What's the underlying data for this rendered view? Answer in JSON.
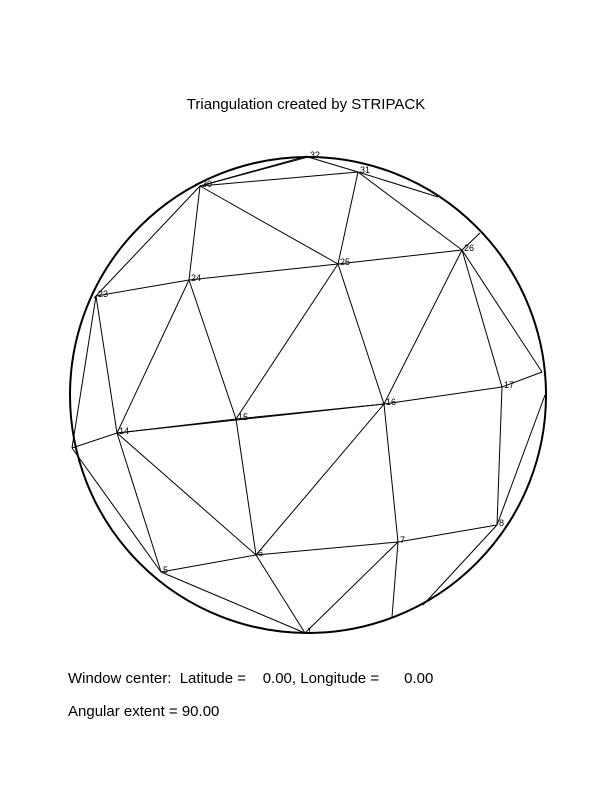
{
  "title": "Triangulation created by STRIPACK",
  "window_center": {
    "prefix": "Window center:",
    "lat_label": "Latitude =",
    "lat_value": "0.00",
    "lon_label": "Longitude =",
    "lon_value": "0.00"
  },
  "angular_extent": {
    "label": "Angular extent =",
    "value": "90.00"
  },
  "nodes": [
    {
      "id": "1"
    },
    {
      "id": "5"
    },
    {
      "id": "6"
    },
    {
      "id": "7"
    },
    {
      "id": "8"
    },
    {
      "id": "14"
    },
    {
      "id": "15"
    },
    {
      "id": "16"
    },
    {
      "id": "17"
    },
    {
      "id": "23"
    },
    {
      "id": "24"
    },
    {
      "id": "25"
    },
    {
      "id": "26"
    },
    {
      "id": "30"
    },
    {
      "id": "31"
    },
    {
      "id": "32"
    }
  ],
  "colors": {
    "line": "#000000",
    "background": "#ffffff"
  }
}
